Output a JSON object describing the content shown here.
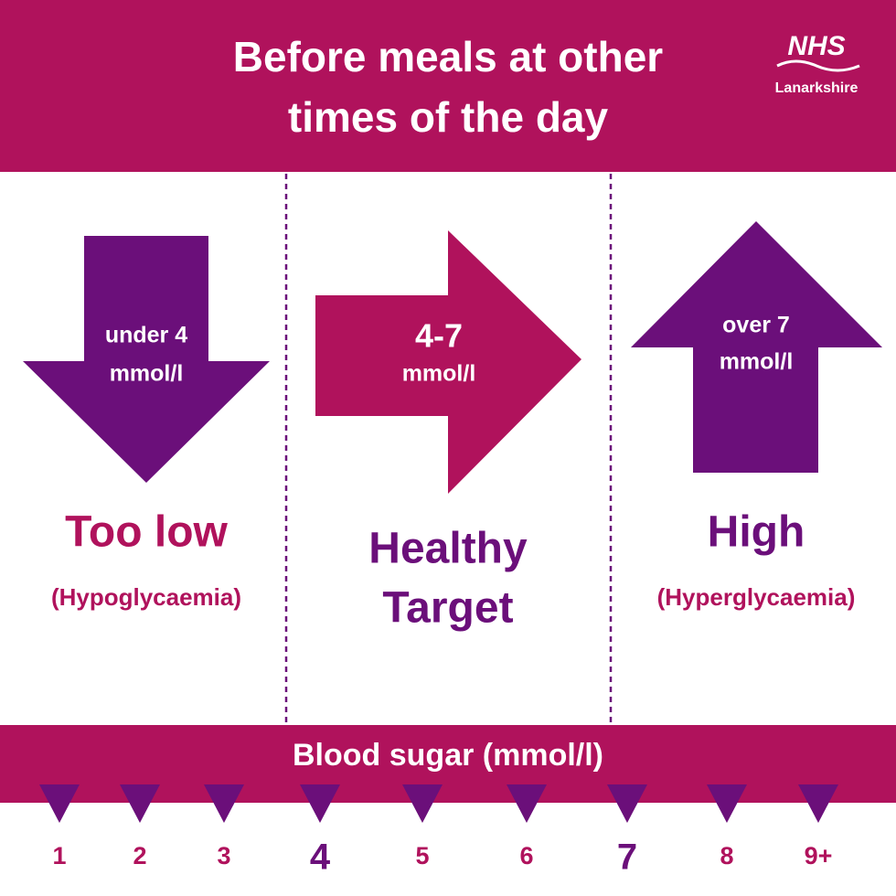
{
  "header": {
    "title_lines": [
      "Before meals at other",
      "times of the day"
    ],
    "logo": {
      "name": "NHS",
      "region": "Lanarkshire"
    }
  },
  "ranges": [
    {
      "arrow_text": [
        "under 4",
        "mmol/l"
      ],
      "label": "Too low",
      "sublabel": "(Hypoglycaemia)"
    },
    {
      "arrow_text": [
        "4-7",
        "mmol/l"
      ],
      "label_lines": [
        "Healthy",
        "Target"
      ]
    },
    {
      "arrow_text": [
        "over 7",
        "mmol/l"
      ],
      "label": "High",
      "sublabel": "(Hyperglycaemia)"
    }
  ],
  "scale": {
    "title": "Blood sugar (mmol/l)",
    "ticks": [
      "1",
      "2",
      "3",
      "4",
      "5",
      "6",
      "7",
      "8",
      "9+"
    ]
  }
}
